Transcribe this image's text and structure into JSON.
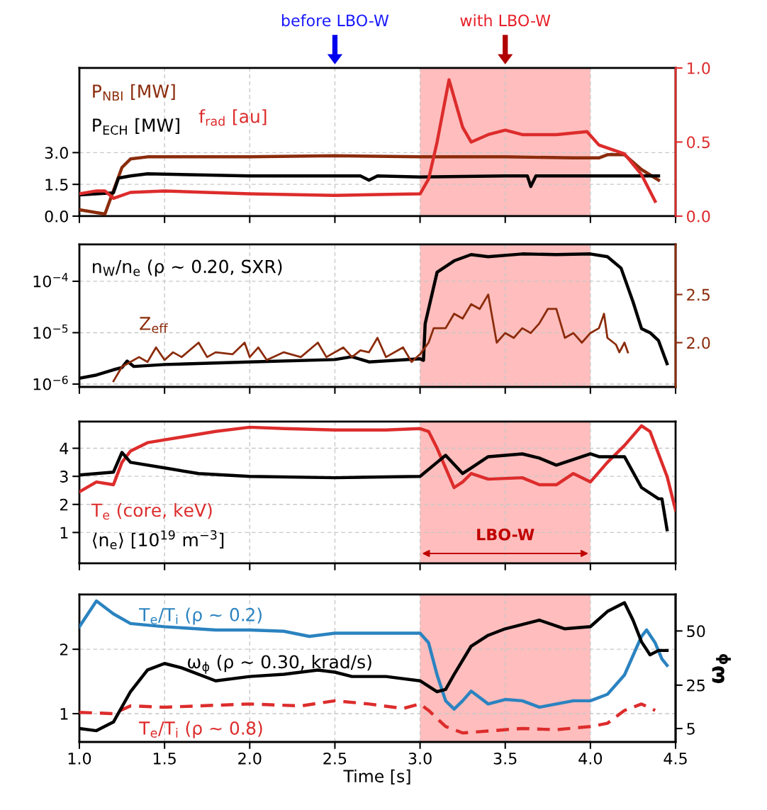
{
  "chart_data": [
    {
      "type": "line",
      "xlim": [
        1.0,
        4.5
      ],
      "xticks": [
        1.0,
        1.5,
        2.0,
        2.5,
        3.0,
        3.5,
        4.0,
        4.5
      ],
      "ylim": [
        0,
        7.0
      ],
      "yticks": [
        {
          "value": 0,
          "label": "0.0"
        },
        {
          "value": 1.5,
          "label": "1.5"
        },
        {
          "value": 3.0,
          "label": "3.0"
        }
      ],
      "y2lim": [
        0,
        1.0
      ],
      "y2ticks": [
        {
          "value": 0,
          "label": "0.0"
        },
        {
          "value": 0.5,
          "label": "0.5"
        },
        {
          "value": 1.0,
          "label": "1.0"
        }
      ],
      "tick_labels": "y",
      "grid": true,
      "bands": [
        {
          "axis": "x",
          "from": 3.0,
          "to": 4.0,
          "color": "#ffbdbd"
        }
      ],
      "annotations": [
        "before LBO-W",
        "with LBO-W"
      ],
      "series": [
        {
          "name": "P$_{NBI}$ [MW]",
          "color": "#8b2c0c",
          "x": [
            1.0,
            1.15,
            1.2,
            1.25,
            1.3,
            1.4,
            1.6,
            2.0,
            2.5,
            3.0,
            3.5,
            3.9,
            4.05,
            4.1,
            4.2,
            4.3,
            4.4
          ],
          "values": [
            0.3,
            0.1,
            1.2,
            2.3,
            2.7,
            2.8,
            2.8,
            2.8,
            2.85,
            2.8,
            2.8,
            2.75,
            2.75,
            2.9,
            2.9,
            2.2,
            1.7
          ]
        },
        {
          "name": "P$_{ECH}$ [MW]",
          "color": "#000000",
          "x": [
            1.0,
            1.2,
            1.23,
            1.3,
            1.4,
            2.0,
            2.5,
            2.65,
            2.7,
            2.75,
            3.0,
            3.5,
            3.63,
            3.65,
            3.68,
            4.0,
            4.4
          ],
          "values": [
            1.0,
            1.1,
            1.8,
            1.9,
            2.0,
            1.9,
            1.9,
            1.9,
            1.7,
            1.9,
            1.85,
            1.9,
            1.9,
            1.4,
            1.9,
            1.9,
            1.9
          ]
        },
        {
          "name": "f$_{rad}$ [au]",
          "color": "#dd2c2c",
          "axis": "y2",
          "x": [
            1.0,
            1.1,
            1.15,
            1.2,
            1.3,
            1.5,
            2.0,
            2.5,
            3.0,
            3.05,
            3.1,
            3.17,
            3.25,
            3.3,
            3.4,
            3.5,
            3.6,
            3.8,
            3.98,
            4.05,
            4.2,
            4.3,
            4.38
          ],
          "values": [
            0.15,
            0.17,
            0.17,
            0.12,
            0.16,
            0.17,
            0.15,
            0.14,
            0.15,
            0.25,
            0.5,
            0.92,
            0.6,
            0.5,
            0.55,
            0.58,
            0.55,
            0.55,
            0.57,
            0.48,
            0.42,
            0.28,
            0.1
          ]
        }
      ]
    },
    {
      "type": "line",
      "log": true,
      "xlim": [
        1.0,
        4.5
      ],
      "xticks": [
        1.0,
        1.5,
        2.0,
        2.5,
        3.0,
        3.5,
        4.0,
        4.5
      ],
      "ylim": [
        8.8e-07,
        0.00052
      ],
      "yticks": [
        {
          "value": 1e-06,
          "label": "10$^{−6}$"
        },
        {
          "value": 1e-05,
          "label": "10$^{−5}$"
        },
        {
          "value": 0.0001,
          "label": "10$^{−4}$"
        }
      ],
      "y2lim": [
        1.54,
        3.02
      ],
      "y2ticks": [
        {
          "value": 2.0,
          "label": "2.0"
        },
        {
          "value": 2.5,
          "label": "2.5"
        }
      ],
      "tick_labels": "y",
      "grid": true,
      "bands": [
        {
          "axis": "x",
          "from": 3.0,
          "to": 4.0,
          "color": "#ffbdbd"
        }
      ],
      "series": [
        {
          "name": "n$_{W}$/n$_{e}$ (ρ ~ 0.20, SXR)",
          "color": "#000000",
          "x": [
            1.0,
            1.1,
            1.2,
            1.25,
            1.28,
            1.32,
            1.5,
            2.0,
            2.5,
            2.6,
            2.7,
            3.0,
            3.02,
            3.03,
            3.1,
            3.2,
            3.3,
            3.4,
            3.6,
            3.8,
            4.0,
            4.1,
            4.18,
            4.25,
            4.3,
            4.35,
            4.4,
            4.45
          ],
          "values": [
            1.3e-06,
            1.5e-06,
            1.9e-06,
            2.1e-06,
            2.8e-06,
            2.2e-06,
            2.4e-06,
            2.7e-06,
            3e-06,
            3.4e-06,
            2.7e-06,
            3.1e-06,
            2.9e-06,
            1.5e-05,
            0.00015,
            0.00025,
            0.00033,
            0.0003,
            0.00034,
            0.00033,
            0.00034,
            0.0003,
            0.00018,
            4e-05,
            1.2e-05,
            1e-05,
            7e-06,
            2.5e-06
          ]
        },
        {
          "name": "Z$_{eff}$",
          "color": "#8b2c0c",
          "axis": "y2",
          "x": [
            1.2,
            1.25,
            1.3,
            1.35,
            1.4,
            1.45,
            1.5,
            1.55,
            1.6,
            1.7,
            1.75,
            1.8,
            1.9,
            1.97,
            2.0,
            2.05,
            2.1,
            2.2,
            2.3,
            2.4,
            2.45,
            2.55,
            2.6,
            2.65,
            2.7,
            2.75,
            2.8,
            2.9,
            2.95,
            3.0,
            3.05,
            3.08,
            3.15,
            3.2,
            3.25,
            3.3,
            3.35,
            3.4,
            3.45,
            3.5,
            3.55,
            3.6,
            3.65,
            3.7,
            3.75,
            3.8,
            3.85,
            3.9,
            3.95,
            4.0,
            4.05,
            4.08,
            4.1,
            4.15,
            4.17,
            4.2,
            4.22
          ],
          "values": [
            1.6,
            1.75,
            1.8,
            1.85,
            1.8,
            1.95,
            1.82,
            1.9,
            1.85,
            2.0,
            1.85,
            1.9,
            1.88,
            2.0,
            1.85,
            1.95,
            1.82,
            1.9,
            1.85,
            2.0,
            1.85,
            1.95,
            1.85,
            1.92,
            1.9,
            2.05,
            1.85,
            1.95,
            1.8,
            1.88,
            2.0,
            2.15,
            2.15,
            2.3,
            2.25,
            2.4,
            2.35,
            2.5,
            2.0,
            2.1,
            2.05,
            2.15,
            2.1,
            2.2,
            2.35,
            2.35,
            2.05,
            2.1,
            2.0,
            2.1,
            2.15,
            2.3,
            2.05,
            1.98,
            1.9,
            2.0,
            1.9
          ]
        }
      ]
    },
    {
      "type": "line",
      "xlim": [
        1.0,
        4.5
      ],
      "xticks": [
        1.0,
        1.5,
        2.0,
        2.5,
        3.0,
        3.5,
        4.0,
        4.5
      ],
      "ylim": [
        -0.1,
        4.95
      ],
      "yticks": [
        1,
        2,
        3,
        4
      ],
      "tick_labels": "y",
      "grid": true,
      "bands": [
        {
          "axis": "x",
          "from": 3.0,
          "to": 4.0,
          "color": "#ffbdbd",
          "label": "LBO-W"
        }
      ],
      "series": [
        {
          "name": "T$_{e}$ (core, keV)",
          "color": "#dd2c2c",
          "x": [
            1.0,
            1.1,
            1.2,
            1.25,
            1.3,
            1.4,
            1.6,
            1.8,
            2.0,
            2.2,
            2.5,
            2.8,
            3.0,
            3.05,
            3.1,
            3.2,
            3.25,
            3.3,
            3.4,
            3.6,
            3.7,
            3.8,
            3.9,
            4.0,
            4.1,
            4.2,
            4.3,
            4.35,
            4.45,
            4.5
          ],
          "values": [
            2.45,
            2.8,
            2.7,
            3.5,
            3.9,
            4.2,
            4.4,
            4.6,
            4.75,
            4.7,
            4.65,
            4.65,
            4.7,
            4.6,
            4.0,
            2.6,
            2.8,
            3.1,
            2.9,
            2.95,
            2.7,
            2.7,
            3.1,
            2.8,
            3.5,
            4.1,
            4.8,
            4.6,
            3.0,
            1.8
          ]
        },
        {
          "name": "⟨n$_{e}$⟩ [10$^{19}$ m$^{−3}$]",
          "color": "#000000",
          "x": [
            1.0,
            1.2,
            1.25,
            1.3,
            1.5,
            1.7,
            2.0,
            2.5,
            3.0,
            3.1,
            3.15,
            3.25,
            3.3,
            3.4,
            3.6,
            3.7,
            3.8,
            3.9,
            4.0,
            4.05,
            4.2,
            4.3,
            4.4,
            4.42,
            4.45
          ],
          "values": [
            3.05,
            3.15,
            3.85,
            3.5,
            3.3,
            3.1,
            3.0,
            2.95,
            3.0,
            3.5,
            3.75,
            3.1,
            3.3,
            3.7,
            3.8,
            3.65,
            3.4,
            3.6,
            3.8,
            3.7,
            3.7,
            2.6,
            2.2,
            2.2,
            1.1
          ]
        }
      ]
    },
    {
      "type": "line",
      "xlim": [
        1.0,
        4.5
      ],
      "xticks": [
        {
          "value": 1.0,
          "label": "1.0"
        },
        {
          "value": 1.5,
          "label": "1.5"
        },
        {
          "value": 2.0,
          "label": "2.0"
        },
        {
          "value": 2.5,
          "label": "2.5"
        },
        {
          "value": 3.0,
          "label": "3.0"
        },
        {
          "value": 3.5,
          "label": "3.5"
        },
        {
          "value": 4.0,
          "label": "4.0"
        },
        {
          "value": 4.5,
          "label": "4.5"
        }
      ],
      "ylim": [
        0.56,
        2.85
      ],
      "yticks": [
        1,
        2
      ],
      "y2lim": [
        -1.2,
        66.8
      ],
      "y2ticks": [
        5,
        25,
        50
      ],
      "xlabel": "Time [s]",
      "y2label": "ω$_{ϕ}$",
      "grid": true,
      "bands": [
        {
          "axis": "x",
          "from": 3.0,
          "to": 4.0,
          "color": "#ffbdbd"
        }
      ],
      "series": [
        {
          "name": "T$_{e}$/T$_{i}$ (ρ ~ 0.2)",
          "color": "#2b83c0",
          "x": [
            1.0,
            1.1,
            1.2,
            1.3,
            1.5,
            1.8,
            2.0,
            2.2,
            2.35,
            2.5,
            2.7,
            3.0,
            3.05,
            3.1,
            3.15,
            3.2,
            3.25,
            3.3,
            3.35,
            3.4,
            3.5,
            3.6,
            3.7,
            3.8,
            3.9,
            4.0,
            4.1,
            4.2,
            4.3,
            4.33,
            4.38,
            4.42,
            4.45
          ],
          "values": [
            2.35,
            2.75,
            2.55,
            2.4,
            2.35,
            2.3,
            2.3,
            2.28,
            2.2,
            2.25,
            2.25,
            2.25,
            2.1,
            1.6,
            1.2,
            1.07,
            1.2,
            1.35,
            1.25,
            1.15,
            1.22,
            1.2,
            1.1,
            1.15,
            1.2,
            1.2,
            1.3,
            1.6,
            2.2,
            2.3,
            2.1,
            1.85,
            1.75
          ]
        },
        {
          "name": "ω$_{ϕ}$ (ρ ~ 0.30, krad/s)",
          "color": "#000000",
          "axis": "y2",
          "x": [
            1.0,
            1.1,
            1.2,
            1.3,
            1.4,
            1.5,
            1.6,
            1.8,
            2.0,
            2.2,
            2.4,
            2.5,
            2.6,
            2.8,
            3.0,
            3.1,
            3.15,
            3.2,
            3.3,
            3.4,
            3.5,
            3.7,
            3.85,
            4.0,
            4.1,
            4.2,
            4.25,
            4.3,
            4.35,
            4.4,
            4.45
          ],
          "values": [
            5,
            4,
            8,
            22,
            32,
            35,
            33,
            27,
            29,
            30,
            32,
            31,
            29,
            29,
            27,
            22,
            23,
            30,
            43,
            48,
            51,
            55,
            51,
            52,
            59,
            63,
            55,
            45,
            39,
            41,
            41
          ]
        },
        {
          "name": "T$_{e}$/T$_{i}$ (ρ ~ 0.8)",
          "color": "#dd2c2c",
          "line_style": "dashed",
          "x": [
            1.0,
            1.2,
            1.3,
            1.5,
            2.0,
            2.3,
            2.5,
            2.7,
            2.9,
            3.0,
            3.05,
            3.15,
            3.25,
            3.4,
            3.6,
            3.8,
            4.0,
            4.1,
            4.2,
            4.3,
            4.38
          ],
          "values": [
            1.02,
            1.0,
            1.12,
            1.1,
            1.15,
            1.12,
            1.2,
            1.15,
            1.08,
            1.15,
            1.05,
            0.8,
            0.7,
            0.73,
            0.77,
            0.75,
            0.8,
            0.85,
            1.05,
            1.15,
            1.05
          ]
        }
      ]
    }
  ]
}
